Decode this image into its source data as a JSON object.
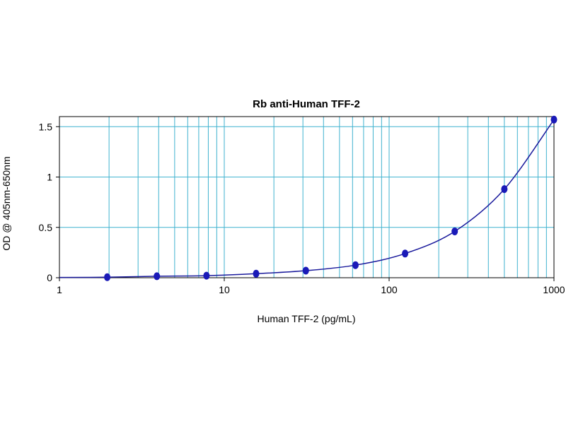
{
  "chart_data": {
    "type": "scatter",
    "title": "Rb anti-Human TFF-2",
    "xlabel": "Human TFF-2 (pg/mL)",
    "ylabel": "OD @ 405nm-650nm",
    "xscale": "log",
    "xlim": [
      1,
      1000
    ],
    "ylim": [
      0,
      1.6
    ],
    "grid": true,
    "x_ticks": [
      1,
      10,
      100,
      1000
    ],
    "x_tick_labels": [
      "1",
      "10",
      "100",
      "1000"
    ],
    "y_ticks": [
      0,
      0.5,
      1,
      1.5
    ],
    "y_tick_labels": [
      "0",
      "0.5",
      "1",
      "1.5"
    ],
    "series": [
      {
        "points": [
          {
            "x": 1.95,
            "y": 0.005
          },
          {
            "x": 3.9,
            "y": 0.015
          },
          {
            "x": 7.8,
            "y": 0.02
          },
          {
            "x": 15.6,
            "y": 0.04
          },
          {
            "x": 31.25,
            "y": 0.07
          },
          {
            "x": 62.5,
            "y": 0.125
          },
          {
            "x": 125,
            "y": 0.24
          },
          {
            "x": 250,
            "y": 0.46
          },
          {
            "x": 500,
            "y": 0.88
          },
          {
            "x": 1000,
            "y": 1.57
          }
        ]
      }
    ],
    "curve": "fit",
    "colors": {
      "grid": "#3fb2cf",
      "curve": "#1a1a9c",
      "marker": "#1a1ab8"
    }
  }
}
